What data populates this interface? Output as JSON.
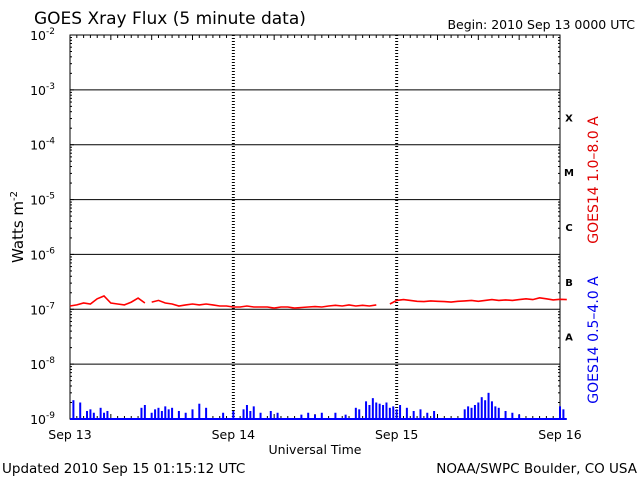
{
  "chart_data": {
    "type": "line",
    "title": "GOES Xray Flux (5 minute data)",
    "begin": "Begin:  2010 Sep 13 0000 UTC",
    "xlabel": "Universal Time",
    "ylabel": "Watts m",
    "ylabel_exp": "-2",
    "yscale": "log",
    "ylim": [
      1e-09,
      0.01
    ],
    "xlim": [
      "2010-09-13 00:00",
      "2010-09-16 00:00"
    ],
    "x_ticks": [
      "Sep 13",
      "Sep 14",
      "Sep 15",
      "Sep 16"
    ],
    "y_ticks": [
      {
        "base": "10",
        "exp": "-2"
      },
      {
        "base": "10",
        "exp": "-3"
      },
      {
        "base": "10",
        "exp": "-4"
      },
      {
        "base": "10",
        "exp": "-5"
      },
      {
        "base": "10",
        "exp": "-6"
      },
      {
        "base": "10",
        "exp": "-7"
      },
      {
        "base": "10",
        "exp": "-8"
      },
      {
        "base": "10",
        "exp": "-9"
      }
    ],
    "flare_classes": [
      "X",
      "M",
      "C",
      "B",
      "A"
    ],
    "grid": true,
    "series": [
      {
        "name": "GOES14 1.0–8.0 A",
        "color": "#ff0000",
        "segments": [
          {
            "x": [
              "2010-09-13 00:00",
              "2010-09-13 01:00",
              "2010-09-13 02:00",
              "2010-09-13 03:00",
              "2010-09-13 04:00",
              "2010-09-13 05:00",
              "2010-09-13 06:00",
              "2010-09-13 07:00",
              "2010-09-13 08:00",
              "2010-09-13 09:00",
              "2010-09-13 10:00",
              "2010-09-13 11:00"
            ],
            "y": [
              1.15e-07,
              1.2e-07,
              1.3e-07,
              1.25e-07,
              1.55e-07,
              1.75e-07,
              1.3e-07,
              1.25e-07,
              1.2e-07,
              1.35e-07,
              1.6e-07,
              1.3e-07
            ]
          },
          {
            "x": [
              "2010-09-13 12:00",
              "2010-09-13 13:00",
              "2010-09-13 14:00",
              "2010-09-13 15:00",
              "2010-09-13 16:00",
              "2010-09-13 17:00",
              "2010-09-13 18:00",
              "2010-09-13 19:00",
              "2010-09-13 20:00",
              "2010-09-13 21:00",
              "2010-09-13 22:00",
              "2010-09-13 23:00",
              "2010-09-14 00:00",
              "2010-09-14 01:00",
              "2010-09-14 02:00",
              "2010-09-14 03:00",
              "2010-09-14 04:00",
              "2010-09-14 05:00",
              "2010-09-14 06:00",
              "2010-09-14 07:00",
              "2010-09-14 08:00",
              "2010-09-14 09:00",
              "2010-09-14 10:00",
              "2010-09-14 11:00",
              "2010-09-14 12:00",
              "2010-09-14 13:00",
              "2010-09-14 14:00",
              "2010-09-14 15:00",
              "2010-09-14 16:00",
              "2010-09-14 17:00",
              "2010-09-14 18:00",
              "2010-09-14 19:00",
              "2010-09-14 20:00",
              "2010-09-14 21:00"
            ],
            "y": [
              1.35e-07,
              1.45e-07,
              1.3e-07,
              1.25e-07,
              1.15e-07,
              1.2e-07,
              1.25e-07,
              1.2e-07,
              1.25e-07,
              1.2e-07,
              1.15e-07,
              1.15e-07,
              1.1e-07,
              1.1e-07,
              1.15e-07,
              1.1e-07,
              1.1e-07,
              1.1e-07,
              1.05e-07,
              1.1e-07,
              1.1e-07,
              1.05e-07,
              1.08e-07,
              1.1e-07,
              1.12e-07,
              1.1e-07,
              1.15e-07,
              1.18e-07,
              1.15e-07,
              1.2e-07,
              1.15e-07,
              1.18e-07,
              1.15e-07,
              1.2e-07
            ]
          },
          {
            "x": [
              "2010-09-14 23:00",
              "2010-09-15 00:00",
              "2010-09-15 01:00",
              "2010-09-15 02:00",
              "2010-09-15 03:00",
              "2010-09-15 04:00",
              "2010-09-15 05:00",
              "2010-09-15 06:00",
              "2010-09-15 07:00",
              "2010-09-15 08:00",
              "2010-09-15 09:00",
              "2010-09-15 10:00",
              "2010-09-15 11:00",
              "2010-09-15 12:00",
              "2010-09-15 13:00",
              "2010-09-15 14:00",
              "2010-09-15 15:00",
              "2010-09-15 16:00",
              "2010-09-15 17:00",
              "2010-09-15 18:00",
              "2010-09-15 19:00",
              "2010-09-15 20:00",
              "2010-09-15 21:00",
              "2010-09-15 22:00",
              "2010-09-15 23:00",
              "2010-09-16 00:00",
              "2010-09-16 01:00"
            ],
            "y": [
              1.25e-07,
              1.45e-07,
              1.5e-07,
              1.45e-07,
              1.4e-07,
              1.38e-07,
              1.42e-07,
              1.4e-07,
              1.38e-07,
              1.35e-07,
              1.4e-07,
              1.42e-07,
              1.45e-07,
              1.4e-07,
              1.45e-07,
              1.5e-07,
              1.45e-07,
              1.48e-07,
              1.45e-07,
              1.5e-07,
              1.55e-07,
              1.5e-07,
              1.62e-07,
              1.55e-07,
              1.48e-07,
              1.52e-07,
              1.5e-07
            ]
          }
        ]
      },
      {
        "name": "GOES14 0.5–4.0 A",
        "color": "#0000ff",
        "baseline": 1e-09,
        "spikes": [
          [
            "2010-09-13 00:30",
            2.2e-09
          ],
          [
            "2010-09-13 01:30",
            2e-09
          ],
          [
            "2010-09-13 02:30",
            1.4e-09
          ],
          [
            "2010-09-13 03:00",
            1.5e-09
          ],
          [
            "2010-09-13 03:30",
            1.3e-09
          ],
          [
            "2010-09-13 04:30",
            1.6e-09
          ],
          [
            "2010-09-13 05:00",
            1.3e-09
          ],
          [
            "2010-09-13 05:30",
            1.4e-09
          ],
          [
            "2010-09-13 10:30",
            1.6e-09
          ],
          [
            "2010-09-13 11:00",
            1.8e-09
          ],
          [
            "2010-09-13 12:00",
            1.3e-09
          ],
          [
            "2010-09-13 12:30",
            1.5e-09
          ],
          [
            "2010-09-13 13:00",
            1.6e-09
          ],
          [
            "2010-09-13 13:30",
            1.4e-09
          ],
          [
            "2010-09-13 14:00",
            1.7e-09
          ],
          [
            "2010-09-13 14:30",
            1.5e-09
          ],
          [
            "2010-09-13 15:00",
            1.6e-09
          ],
          [
            "2010-09-13 16:00",
            1.4e-09
          ],
          [
            "2010-09-13 17:00",
            1.3e-09
          ],
          [
            "2010-09-13 18:00",
            1.5e-09
          ],
          [
            "2010-09-13 19:00",
            1.9e-09
          ],
          [
            "2010-09-13 20:00",
            1.6e-09
          ],
          [
            "2010-09-13 22:30",
            1.3e-09
          ],
          [
            "2010-09-14 00:00",
            1.4e-09
          ],
          [
            "2010-09-14 01:30",
            1.5e-09
          ],
          [
            "2010-09-14 02:00",
            1.8e-09
          ],
          [
            "2010-09-14 02:30",
            1.4e-09
          ],
          [
            "2010-09-14 03:00",
            1.7e-09
          ],
          [
            "2010-09-14 04:00",
            1.3e-09
          ],
          [
            "2010-09-14 05:30",
            1.4e-09
          ],
          [
            "2010-09-14 06:30",
            1.3e-09
          ],
          [
            "2010-09-14 10:00",
            1.2e-09
          ],
          [
            "2010-09-14 11:00",
            1.3e-09
          ],
          [
            "2010-09-14 12:00",
            1.2e-09
          ],
          [
            "2010-09-14 13:00",
            1.3e-09
          ],
          [
            "2010-09-14 15:00",
            1.3e-09
          ],
          [
            "2010-09-14 16:30",
            1.2e-09
          ],
          [
            "2010-09-14 18:00",
            1.6e-09
          ],
          [
            "2010-09-14 18:30",
            1.5e-09
          ],
          [
            "2010-09-14 19:30",
            2.1e-09
          ],
          [
            "2010-09-14 20:00",
            1.8e-09
          ],
          [
            "2010-09-14 20:30",
            2.4e-09
          ],
          [
            "2010-09-14 21:00",
            2e-09
          ],
          [
            "2010-09-14 21:30",
            1.9e-09
          ],
          [
            "2010-09-14 22:00",
            1.8e-09
          ],
          [
            "2010-09-14 22:30",
            2e-09
          ],
          [
            "2010-09-14 23:00",
            1.6e-09
          ],
          [
            "2010-09-14 23:30",
            1.7e-09
          ],
          [
            "2010-09-15 00:00",
            1.5e-09
          ],
          [
            "2010-09-15 00:30",
            1.8e-09
          ],
          [
            "2010-09-15 01:30",
            1.6e-09
          ],
          [
            "2010-09-15 02:30",
            1.4e-09
          ],
          [
            "2010-09-15 03:30",
            1.5e-09
          ],
          [
            "2010-09-15 04:30",
            1.3e-09
          ],
          [
            "2010-09-15 05:30",
            1.4e-09
          ],
          [
            "2010-09-15 10:00",
            1.5e-09
          ],
          [
            "2010-09-15 10:30",
            1.7e-09
          ],
          [
            "2010-09-15 11:00",
            1.6e-09
          ],
          [
            "2010-09-15 11:30",
            1.8e-09
          ],
          [
            "2010-09-15 12:00",
            2e-09
          ],
          [
            "2010-09-15 12:30",
            2.5e-09
          ],
          [
            "2010-09-15 13:00",
            2.2e-09
          ],
          [
            "2010-09-15 13:30",
            3e-09
          ],
          [
            "2010-09-15 14:00",
            2.1e-09
          ],
          [
            "2010-09-15 14:30",
            1.7e-09
          ],
          [
            "2010-09-15 15:00",
            1.6e-09
          ],
          [
            "2010-09-15 16:00",
            1.4e-09
          ],
          [
            "2010-09-15 17:00",
            1.3e-09
          ],
          [
            "2010-09-15 18:00",
            1.2e-09
          ],
          [
            "2010-09-16 00:00",
            1.7e-09
          ],
          [
            "2010-09-16 00:30",
            1.5e-09
          ]
        ]
      }
    ],
    "footer_left": "Updated 2010 Sep 15 01:15:12 UTC",
    "footer_right": "NOAA/SWPC Boulder, CO USA"
  }
}
